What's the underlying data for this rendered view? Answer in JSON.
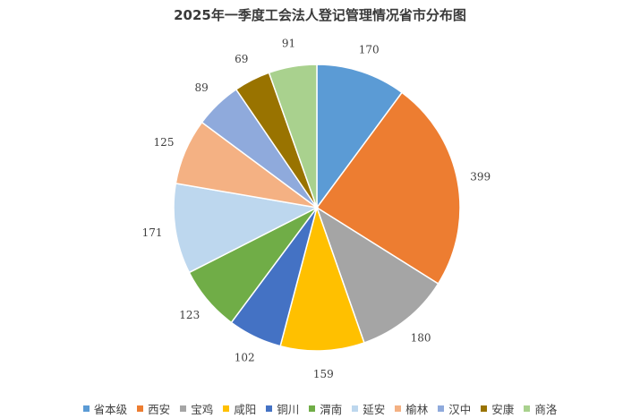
{
  "chart_data": {
    "type": "pie",
    "title": "2025年一季度工会法人登记管理情况省市分布图",
    "categories": [
      "省本级",
      "西安",
      "宝鸡",
      "咸阳",
      "铜川",
      "渭南",
      "延安",
      "榆林",
      "汉中",
      "安康",
      "商洛"
    ],
    "values": [
      170,
      399,
      180,
      159,
      102,
      123,
      171,
      125,
      89,
      69,
      91
    ],
    "colors": [
      "#5b9bd5",
      "#ed7d31",
      "#a5a5a5",
      "#ffc000",
      "#4472c4",
      "#70ad47",
      "#bdd7ee",
      "#f4b183",
      "#8faadc",
      "#997300",
      "#a9d18e"
    ],
    "data_labels": true,
    "legend": "bottom"
  }
}
